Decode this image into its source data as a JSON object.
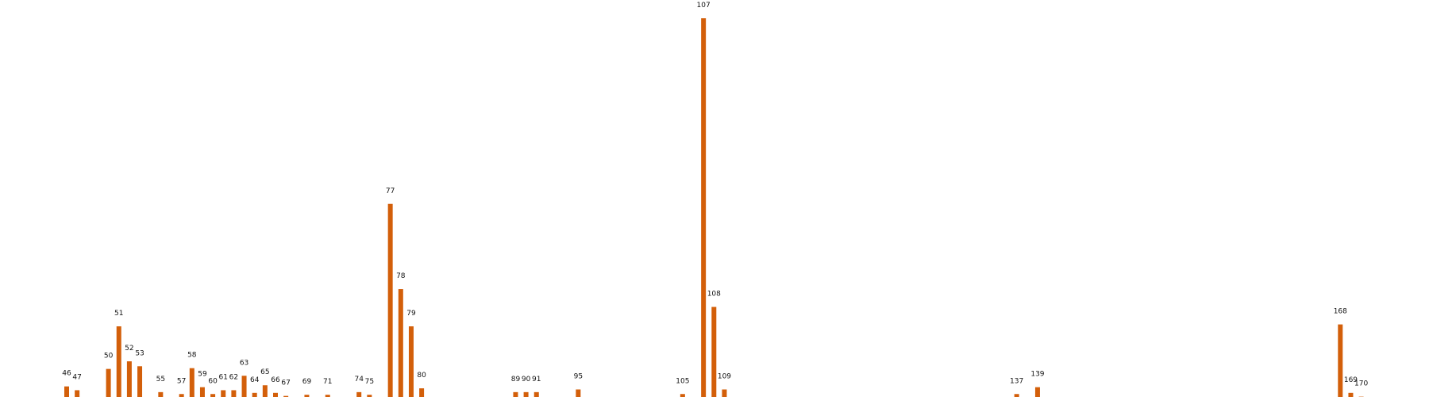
{
  "chart_data": {
    "type": "bar",
    "title": "",
    "xlabel": "",
    "ylabel": "",
    "grid": false,
    "xlim": [
      40,
      176
    ],
    "ylim": [
      0,
      1
    ],
    "bar_color": "#d35f0a",
    "bars": [
      {
        "x": 46,
        "label": "46",
        "value": 0.032
      },
      {
        "x": 47,
        "label": "47",
        "value": 0.022
      },
      {
        "x": 50,
        "label": "50",
        "value": 0.078
      },
      {
        "x": 51,
        "label": "51",
        "value": 0.19
      },
      {
        "x": 52,
        "label": "52",
        "value": 0.098
      },
      {
        "x": 53,
        "label": "53",
        "value": 0.085
      },
      {
        "x": 55,
        "label": "55",
        "value": 0.017
      },
      {
        "x": 57,
        "label": "57",
        "value": 0.012
      },
      {
        "x": 58,
        "label": "58",
        "value": 0.08
      },
      {
        "x": 59,
        "label": "59",
        "value": 0.03
      },
      {
        "x": 60,
        "label": "60",
        "value": 0.012
      },
      {
        "x": 61,
        "label": "61",
        "value": 0.022
      },
      {
        "x": 62,
        "label": "62",
        "value": 0.022
      },
      {
        "x": 63,
        "label": "63",
        "value": 0.06
      },
      {
        "x": 64,
        "label": "64",
        "value": 0.015
      },
      {
        "x": 65,
        "label": "65",
        "value": 0.035
      },
      {
        "x": 66,
        "label": "66",
        "value": 0.015
      },
      {
        "x": 67,
        "label": "67",
        "value": 0.007
      },
      {
        "x": 69,
        "label": "69",
        "value": 0.01
      },
      {
        "x": 71,
        "label": "71",
        "value": 0.01
      },
      {
        "x": 74,
        "label": "74",
        "value": 0.017
      },
      {
        "x": 75,
        "label": "75",
        "value": 0.01
      },
      {
        "x": 77,
        "label": "77",
        "value": 0.512
      },
      {
        "x": 78,
        "label": "78",
        "value": 0.288
      },
      {
        "x": 79,
        "label": "79",
        "value": 0.19
      },
      {
        "x": 80,
        "label": "80",
        "value": 0.027
      },
      {
        "x": 89,
        "label": "89",
        "value": 0.017
      },
      {
        "x": 90,
        "label": "90",
        "value": 0.017
      },
      {
        "x": 91,
        "label": "91",
        "value": 0.017
      },
      {
        "x": 95,
        "label": "95",
        "value": 0.024
      },
      {
        "x": 105,
        "label": "105",
        "value": 0.012
      },
      {
        "x": 107,
        "label": "107",
        "value": 1.0
      },
      {
        "x": 108,
        "label": "108",
        "value": 0.241
      },
      {
        "x": 109,
        "label": "109",
        "value": 0.024
      },
      {
        "x": 137,
        "label": "137",
        "value": 0.012
      },
      {
        "x": 139,
        "label": "139",
        "value": 0.03
      },
      {
        "x": 168,
        "label": "168",
        "value": 0.195
      },
      {
        "x": 169,
        "label": "169",
        "value": 0.015
      },
      {
        "x": 170,
        "label": "170",
        "value": 0.005
      }
    ]
  }
}
